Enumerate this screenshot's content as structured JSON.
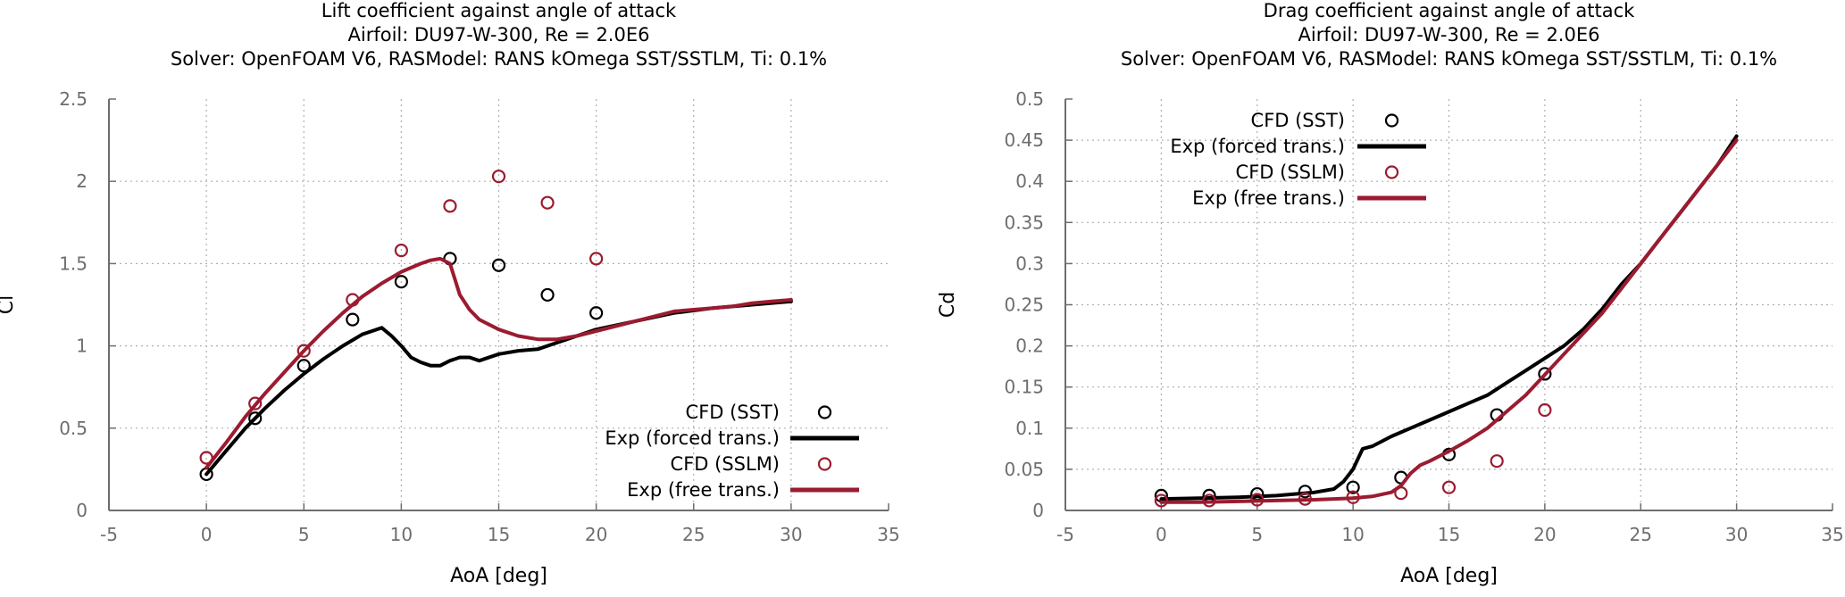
{
  "chart_data": [
    {
      "type": "line",
      "title": "Lift coefficient against angle of attack",
      "subtitle": "Airfoil: DU97-W-300, Re = 2.0E6",
      "subtitle2": "Solver: OpenFOAM V6, RASModel: RANS kOmega SST/SSTLM, Ti: 0.1%",
      "xlabel": "AoA [deg]",
      "ylabel": "Cl",
      "xlim": [
        -5,
        35
      ],
      "ylim": [
        0,
        2.5
      ],
      "xticks": [
        -5,
        0,
        5,
        10,
        15,
        20,
        25,
        30,
        35
      ],
      "yticks": [
        0,
        0.5,
        1,
        1.5,
        2,
        2.5
      ],
      "grid": true,
      "legend_position": "bottom-right",
      "series": [
        {
          "name": "CFD (SST)",
          "kind": "scatter",
          "color": "#000000",
          "x": [
            0,
            2.5,
            5,
            7.5,
            10,
            12.5,
            15,
            17.5,
            20
          ],
          "y": [
            0.22,
            0.56,
            0.88,
            1.16,
            1.39,
            1.53,
            1.49,
            1.31,
            1.2
          ]
        },
        {
          "name": "Exp (forced trans.)",
          "kind": "line",
          "color": "#000000",
          "x": [
            0,
            1,
            2,
            3,
            4,
            5,
            6,
            7,
            8,
            8.5,
            9,
            9.5,
            10,
            10.5,
            11,
            11.5,
            12,
            12.5,
            13,
            13.5,
            14,
            15,
            16,
            17,
            18,
            19,
            20,
            22,
            24,
            26,
            28,
            30
          ],
          "y": [
            0.22,
            0.36,
            0.5,
            0.62,
            0.73,
            0.83,
            0.92,
            1.0,
            1.07,
            1.09,
            1.11,
            1.06,
            1.0,
            0.93,
            0.9,
            0.88,
            0.88,
            0.91,
            0.93,
            0.93,
            0.91,
            0.95,
            0.97,
            0.98,
            1.02,
            1.06,
            1.1,
            1.15,
            1.2,
            1.23,
            1.25,
            1.27
          ]
        },
        {
          "name": "CFD (SSLM)",
          "kind": "scatter",
          "color": "#9b1b30",
          "x": [
            0,
            2.5,
            5,
            7.5,
            10,
            12.5,
            15,
            17.5,
            20
          ],
          "y": [
            0.32,
            0.65,
            0.97,
            1.28,
            1.58,
            1.85,
            2.03,
            1.87,
            1.53
          ]
        },
        {
          "name": "Exp (free trans.)",
          "kind": "line",
          "color": "#9b1b30",
          "x": [
            0,
            1,
            2,
            3,
            4,
            5,
            6,
            7,
            8,
            9,
            10,
            11,
            11.5,
            12,
            12.5,
            13,
            13.5,
            14,
            15,
            16,
            17,
            18,
            19,
            20,
            21,
            22,
            23,
            24,
            25,
            26,
            27,
            28,
            29,
            30
          ],
          "y": [
            0.26,
            0.41,
            0.57,
            0.71,
            0.84,
            0.97,
            1.09,
            1.2,
            1.3,
            1.38,
            1.45,
            1.5,
            1.52,
            1.53,
            1.5,
            1.31,
            1.22,
            1.16,
            1.1,
            1.06,
            1.04,
            1.04,
            1.06,
            1.09,
            1.12,
            1.15,
            1.18,
            1.21,
            1.22,
            1.23,
            1.24,
            1.26,
            1.27,
            1.28
          ]
        }
      ]
    },
    {
      "type": "line",
      "title": "Drag coefficient against angle of attack",
      "subtitle": "Airfoil: DU97-W-300, Re = 2.0E6",
      "subtitle2": "Solver: OpenFOAM V6, RASModel: RANS kOmega SST/SSTLM, Ti: 0.1%",
      "xlabel": "AoA [deg]",
      "ylabel": "Cd",
      "xlim": [
        -5,
        35
      ],
      "ylim": [
        0,
        0.5
      ],
      "xticks": [
        -5,
        0,
        5,
        10,
        15,
        20,
        25,
        30,
        35
      ],
      "yticks": [
        0,
        0.05,
        0.1,
        0.15,
        0.2,
        0.25,
        0.3,
        0.35,
        0.4,
        0.45,
        0.5
      ],
      "grid": true,
      "legend_position": "top-left",
      "series": [
        {
          "name": "CFD (SST)",
          "kind": "scatter",
          "color": "#000000",
          "x": [
            0,
            2.5,
            5,
            7.5,
            10,
            12.5,
            15,
            17.5,
            20
          ],
          "y": [
            0.018,
            0.018,
            0.02,
            0.023,
            0.028,
            0.04,
            0.068,
            0.116,
            0.166
          ]
        },
        {
          "name": "Exp (forced trans.)",
          "kind": "line",
          "color": "#000000",
          "x": [
            0,
            2,
            4,
            6,
            8,
            9,
            9.5,
            10,
            10.5,
            11,
            12,
            13,
            14,
            15,
            16,
            17,
            18,
            19,
            20,
            21,
            22,
            23,
            24,
            25,
            26,
            27,
            28,
            29,
            30
          ],
          "y": [
            0.014,
            0.015,
            0.016,
            0.018,
            0.022,
            0.026,
            0.035,
            0.05,
            0.075,
            0.078,
            0.09,
            0.1,
            0.11,
            0.12,
            0.13,
            0.14,
            0.155,
            0.17,
            0.185,
            0.2,
            0.22,
            0.245,
            0.275,
            0.3,
            0.33,
            0.36,
            0.39,
            0.42,
            0.455
          ]
        },
        {
          "name": "CFD (SSLM)",
          "kind": "scatter",
          "color": "#9b1b30",
          "x": [
            0,
            2.5,
            5,
            7.5,
            10,
            12.5,
            15,
            17.5,
            20
          ],
          "y": [
            0.012,
            0.012,
            0.013,
            0.014,
            0.016,
            0.021,
            0.028,
            0.06,
            0.122
          ]
        },
        {
          "name": "Exp (free trans.)",
          "kind": "line",
          "color": "#9b1b30",
          "x": [
            0,
            2,
            4,
            6,
            8,
            10,
            11,
            12,
            12.5,
            13,
            13.5,
            14,
            15,
            16,
            17,
            18,
            19,
            20,
            21,
            22,
            23,
            24,
            25,
            26,
            27,
            28,
            29,
            30
          ],
          "y": [
            0.01,
            0.01,
            0.011,
            0.012,
            0.013,
            0.015,
            0.017,
            0.022,
            0.03,
            0.045,
            0.055,
            0.06,
            0.072,
            0.085,
            0.1,
            0.12,
            0.14,
            0.165,
            0.19,
            0.215,
            0.24,
            0.27,
            0.3,
            0.33,
            0.36,
            0.39,
            0.42,
            0.45
          ]
        }
      ]
    }
  ]
}
